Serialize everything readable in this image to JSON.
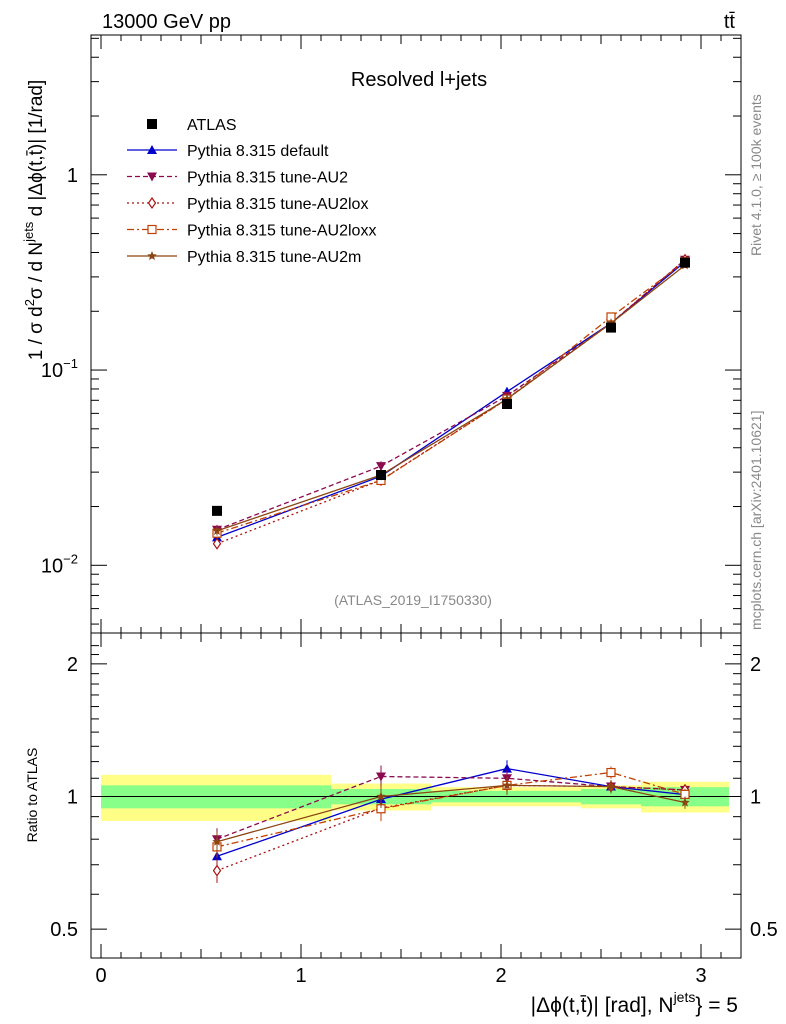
{
  "header": {
    "energy_label": "13000 GeV pp",
    "process_label": "tt̄"
  },
  "side_labels": {
    "rivet": "Rivet 4.1.0, ≥ 100k events",
    "mcplots": "mcplots.cern.ch [arXiv:2401.10621]"
  },
  "chart_data": {
    "type": "line",
    "title": "Resolved l+jets",
    "analysis_tag": "(ATLAS_2019_I1750330)",
    "xlabel": "|Δϕ(t,t̄)| [rad], N^{jets} = 5",
    "ylabel": "1 / σ d²σ / d N^{jets} d |Δϕ(t,t̄)| [1/rad]",
    "ratio_ylabel": "Ratio to ATLAS",
    "xlim": [
      -0.05,
      3.2
    ],
    "ylim": [
      0.0045,
      5.2
    ],
    "yscale": "log",
    "ratio_ylim": [
      0.43,
      2.35
    ],
    "x_ticks": [
      "0",
      "1",
      "2",
      "3"
    ],
    "y_ticks": [
      "10^-2",
      "10^-1",
      "1"
    ],
    "ratio_ticks": [
      "0.5",
      "1",
      "2"
    ],
    "x": [
      0.58,
      1.4,
      2.03,
      2.55,
      2.92
    ],
    "data": {
      "name": "ATLAS",
      "values": [
        0.019,
        0.029,
        0.067,
        0.165,
        0.355
      ],
      "bins": [
        [
          0,
          1.15
        ],
        [
          1.15,
          1.65
        ],
        [
          1.65,
          2.4
        ],
        [
          2.4,
          2.7
        ],
        [
          2.7,
          3.14
        ]
      ],
      "band_stat": [
        0.06,
        0.04,
        0.03,
        0.04,
        0.05
      ],
      "band_total": [
        0.12,
        0.07,
        0.05,
        0.06,
        0.08
      ]
    },
    "series": [
      {
        "name": "Pythia 8.315 default",
        "color": "#0000cc",
        "dash": "",
        "marker": "triangle-up",
        "values": [
          0.0139,
          0.0286,
          0.0775,
          0.1738,
          0.3586
        ],
        "errors": [
          0.0008,
          0.0018,
          0.0035,
          0.006,
          0.01
        ]
      },
      {
        "name": "Pythia 8.315 tune-AU2",
        "color": "#8b0a50",
        "dash": "5,3",
        "marker": "triangle-down",
        "values": [
          0.0152,
          0.0322,
          0.0737,
          0.1738,
          0.3674
        ],
        "errors": [
          0.0009,
          0.0019,
          0.0034,
          0.006,
          0.011
        ]
      },
      {
        "name": "Pythia 8.315 tune-AU2lox",
        "color": "#aa1111",
        "dash": "2,3",
        "marker": "diamond-open",
        "values": [
          0.0129,
          0.0273,
          0.071,
          0.1738,
          0.3674
        ],
        "errors": [
          0.0008,
          0.0017,
          0.0034,
          0.006,
          0.011
        ]
      },
      {
        "name": "Pythia 8.315 tune-AU2loxx",
        "color": "#c04000",
        "dash": "7,3,2,3",
        "marker": "square-open",
        "values": [
          0.0146,
          0.0272,
          0.071,
          0.187,
          0.359
        ],
        "errors": [
          0.0008,
          0.0017,
          0.0034,
          0.006,
          0.011
        ]
      },
      {
        "name": "Pythia 8.315 tune-AU2m",
        "color": "#8b4513",
        "dash": "",
        "marker": "star",
        "values": [
          0.015,
          0.029,
          0.071,
          0.1738,
          0.344
        ],
        "errors": [
          0.0008,
          0.0017,
          0.0034,
          0.006,
          0.011
        ]
      }
    ]
  }
}
